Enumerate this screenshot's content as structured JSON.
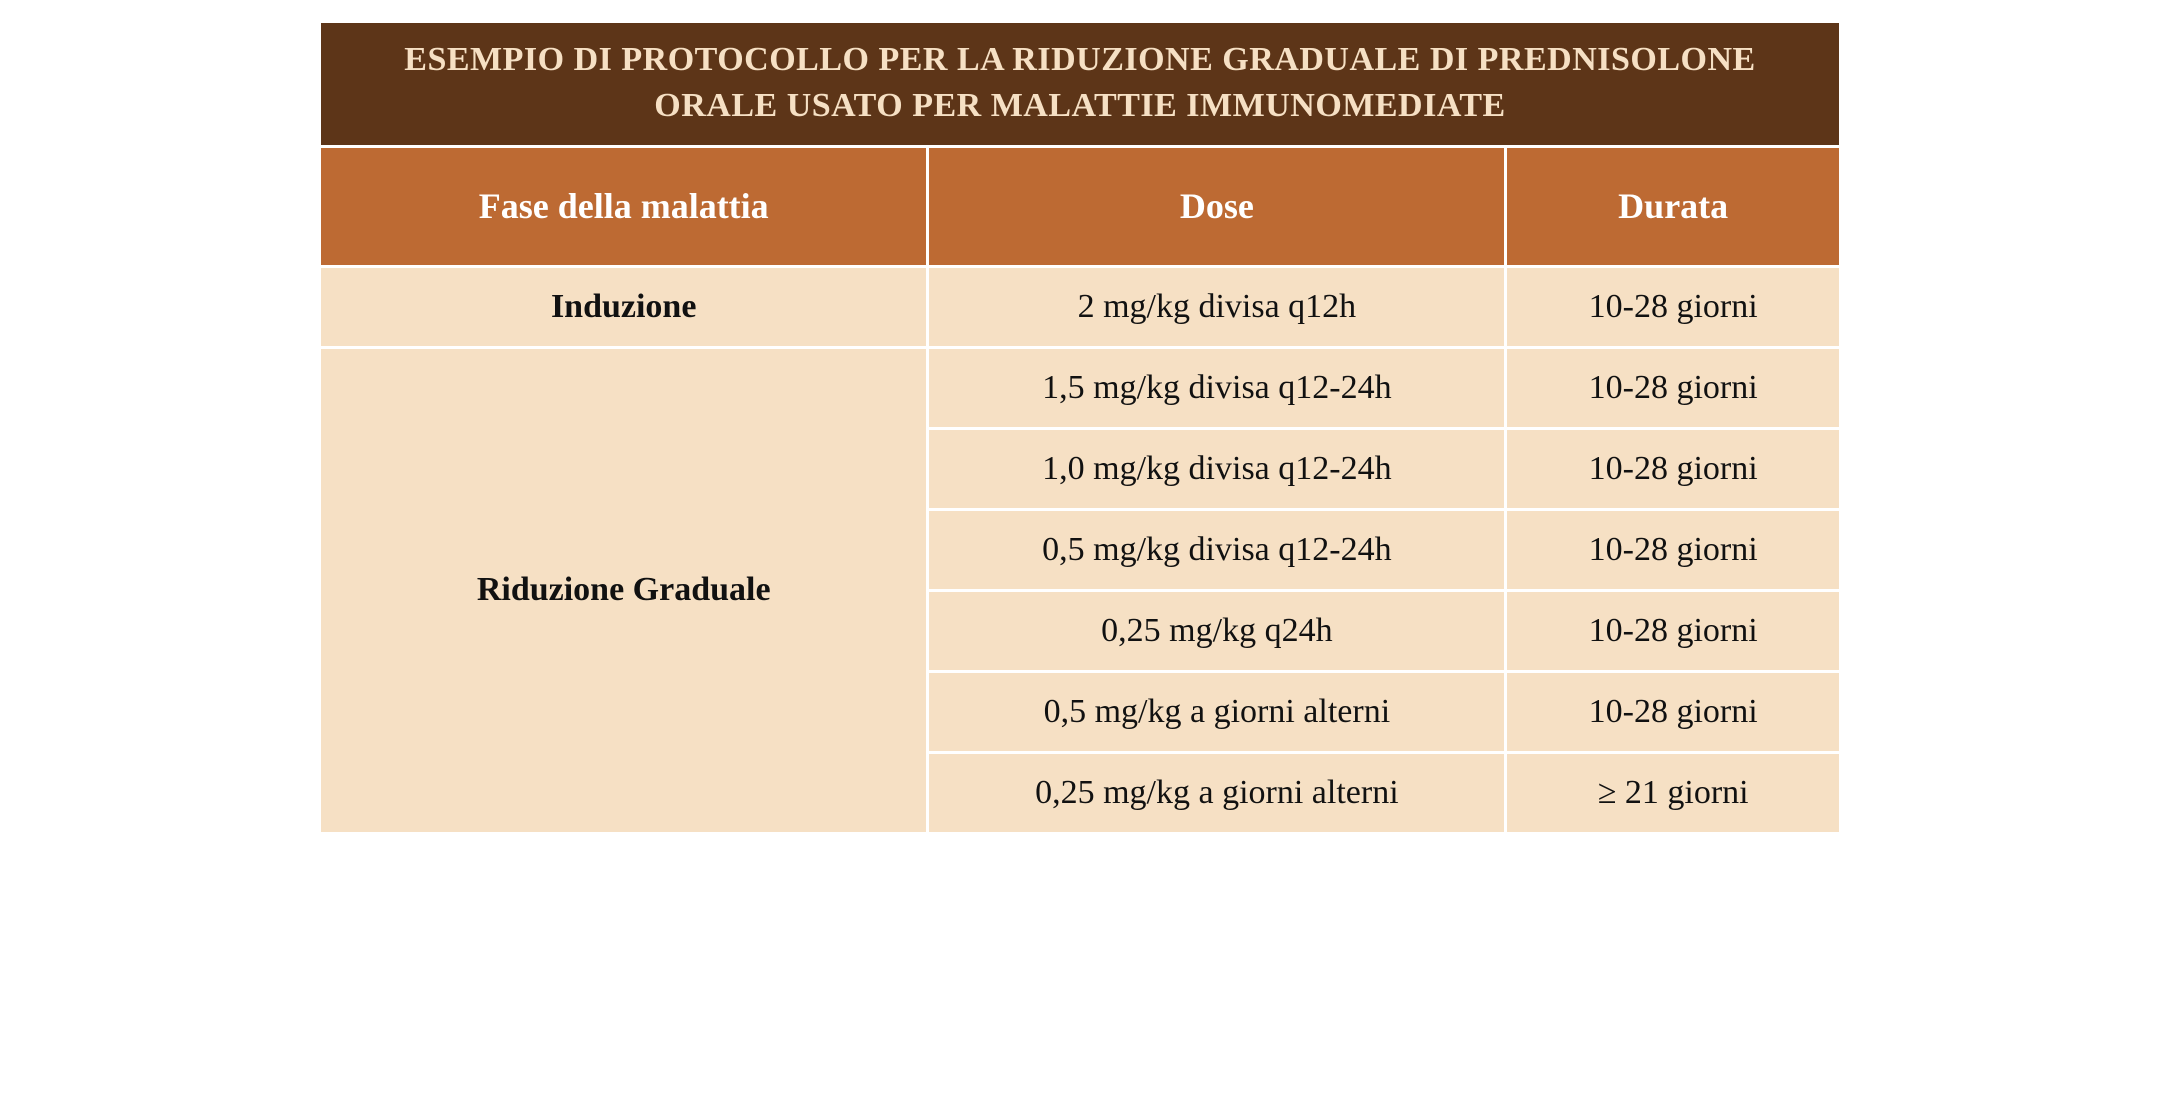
{
  "table": {
    "title": "ESEMPIO DI PROTOCOLLO PER LA RIDUZIONE GRADUALE DI PREDNISOLONE ORALE USATO PER MALATTIE IMMUNOMEDIATE",
    "columns": {
      "phase": "Fase della malattia",
      "dose": "Dose",
      "duration": "Durata"
    },
    "phases": {
      "induction": "Induzione",
      "reduction": "Riduzione Graduale"
    },
    "rows": [
      {
        "dose": "2 mg/kg divisa q12h",
        "duration": "10-28 giorni"
      },
      {
        "dose": "1,5 mg/kg divisa q12-24h",
        "duration": "10-28 giorni"
      },
      {
        "dose": "1,0 mg/kg divisa q12-24h",
        "duration": "10-28 giorni"
      },
      {
        "dose": "0,5 mg/kg divisa q12-24h",
        "duration": "10-28 giorni"
      },
      {
        "dose": "0,25 mg/kg q24h",
        "duration": "10-28 giorni"
      },
      {
        "dose": "0,5 mg/kg a giorni alterni",
        "duration": "10-28 giorni"
      },
      {
        "dose": "0,25 mg/kg a giorni alterni",
        "duration": "≥ 21 giorni"
      }
    ],
    "style": {
      "title_bg": "#5d3518",
      "title_color": "#f6e0c4",
      "title_fontsize": 34,
      "header_bg": "#bd6a33",
      "header_color": "#ffffff",
      "header_fontsize": 36,
      "body_bg": "#f6e0c4",
      "body_text": "#111111",
      "body_fontsize": 34,
      "border_color": "#ffffff",
      "border_width": 3,
      "column_widths_pct": [
        40,
        38,
        22
      ]
    }
  }
}
